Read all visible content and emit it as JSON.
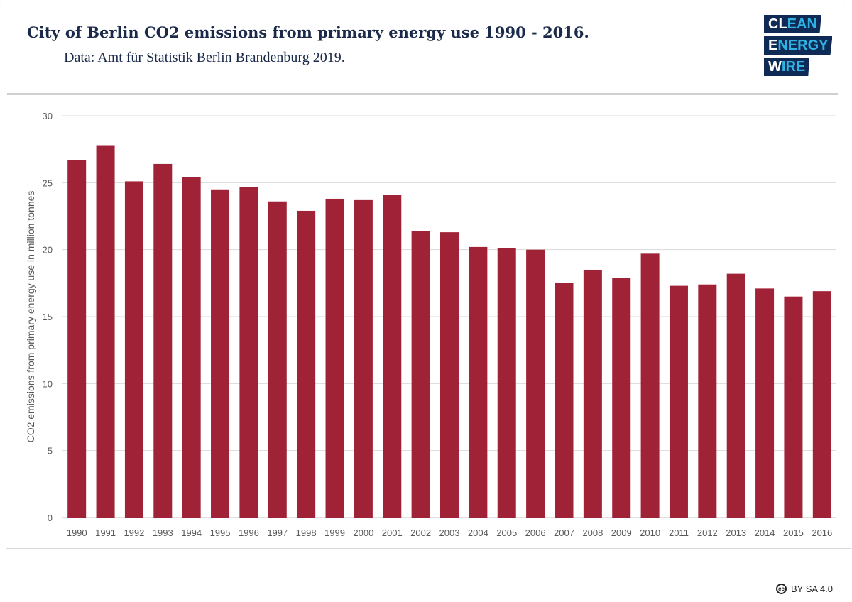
{
  "header": {
    "title": "City of Berlin CO2 emissions from primary energy use 1990 - 2016.",
    "subtitle": "Data: Amt für Statistik Berlin Brandenburg 2019."
  },
  "logo": {
    "line1a": "CL",
    "line1b": "EAN",
    "line2a": "E",
    "line2b": "NERGY",
    "line3a": "W",
    "line3b": "IRE"
  },
  "license": {
    "icon": "creative-commons-icon",
    "text": "BY SA 4.0"
  },
  "colors": {
    "bar": "#a02237",
    "grid": "#d9d9d9",
    "title": "#1b2a4a",
    "logo_bg": "#0f2b55",
    "logo_accent": "#2fb3e5"
  },
  "chart_data": {
    "type": "bar",
    "title": "City of Berlin CO2 emissions from primary energy use 1990 - 2016.",
    "xlabel": "",
    "ylabel": "CO2 emissions from primary energy use in million tonnes",
    "ylim": [
      0,
      30
    ],
    "yticks": [
      0,
      5,
      10,
      15,
      20,
      25,
      30
    ],
    "grid": true,
    "categories": [
      "1990",
      "1991",
      "1992",
      "1993",
      "1994",
      "1995",
      "1996",
      "1997",
      "1998",
      "1999",
      "2000",
      "2001",
      "2002",
      "2003",
      "2004",
      "2005",
      "2006",
      "2007",
      "2008",
      "2009",
      "2010",
      "2011",
      "2012",
      "2013",
      "2014",
      "2015",
      "2016"
    ],
    "values": [
      26.7,
      27.8,
      25.1,
      26.4,
      25.4,
      24.5,
      24.7,
      23.6,
      22.9,
      23.8,
      23.7,
      24.1,
      21.4,
      21.3,
      20.2,
      20.1,
      20.0,
      17.5,
      18.5,
      17.9,
      19.7,
      17.3,
      17.4,
      18.2,
      17.1,
      16.5,
      16.9
    ]
  }
}
